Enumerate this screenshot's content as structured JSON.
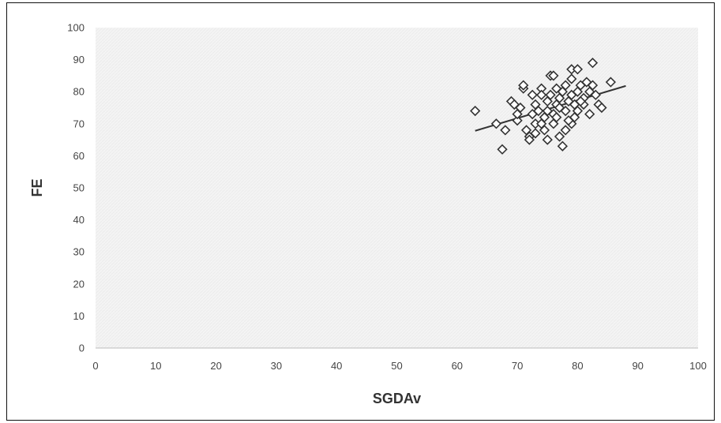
{
  "chart_data": {
    "type": "scatter",
    "title": "",
    "xlabel": "SGDAv",
    "ylabel": "FE",
    "xlim": [
      0,
      100
    ],
    "ylim": [
      0,
      100
    ],
    "x_ticks": [
      "0",
      "10",
      "20",
      "30",
      "40",
      "50",
      "60",
      "70",
      "80",
      "90",
      "100"
    ],
    "y_ticks": [
      "0",
      "10",
      "20",
      "30",
      "40",
      "50",
      "60",
      "70",
      "80",
      "90",
      "100"
    ],
    "grid": false,
    "legend": "none",
    "marker": "diamond-open",
    "colors": {
      "marker": "#333333",
      "trendline": "#333333",
      "plot_background": "#f3f3f3",
      "axis": "#bbbbbb"
    },
    "trendline": {
      "type": "linear",
      "x": [
        63,
        88
      ],
      "y": [
        67.8,
        81.8
      ]
    },
    "series": [
      {
        "points": [
          [
            63,
            74
          ],
          [
            66.5,
            70
          ],
          [
            67.5,
            62
          ],
          [
            68,
            68
          ],
          [
            69,
            77
          ],
          [
            69.5,
            76
          ],
          [
            70,
            71
          ],
          [
            70.5,
            75
          ],
          [
            71,
            81
          ],
          [
            71,
            82
          ],
          [
            71.5,
            68
          ],
          [
            72,
            66
          ],
          [
            72,
            65
          ],
          [
            72.5,
            73
          ],
          [
            73,
            76
          ],
          [
            73,
            70
          ],
          [
            73.5,
            74
          ],
          [
            74,
            81
          ],
          [
            74,
            79
          ],
          [
            74.5,
            72
          ],
          [
            74.5,
            68
          ],
          [
            75,
            65
          ],
          [
            75,
            77
          ],
          [
            75,
            74
          ],
          [
            75.5,
            85
          ],
          [
            75.5,
            79
          ],
          [
            76,
            70
          ],
          [
            76,
            73
          ],
          [
            76,
            85
          ],
          [
            76.5,
            76
          ],
          [
            76.5,
            72
          ],
          [
            77,
            66
          ],
          [
            77,
            75
          ],
          [
            77.5,
            63
          ],
          [
            77.5,
            80
          ],
          [
            78,
            68
          ],
          [
            78,
            74
          ],
          [
            78,
            82
          ],
          [
            78.5,
            77
          ],
          [
            79,
            87
          ],
          [
            79,
            84
          ],
          [
            79,
            79
          ],
          [
            79,
            70
          ],
          [
            79.5,
            76
          ],
          [
            79.5,
            72
          ],
          [
            80,
            87
          ],
          [
            80,
            80
          ],
          [
            80,
            74
          ],
          [
            80.5,
            82
          ],
          [
            81,
            78
          ],
          [
            81,
            76
          ],
          [
            81.5,
            83
          ],
          [
            82,
            80
          ],
          [
            82,
            73
          ],
          [
            82.5,
            89
          ],
          [
            82.5,
            82
          ],
          [
            83,
            79
          ],
          [
            83.5,
            76
          ],
          [
            84,
            75
          ],
          [
            85.5,
            83
          ],
          [
            70,
            73
          ],
          [
            72.5,
            79
          ],
          [
            74,
            70
          ],
          [
            76.5,
            81
          ],
          [
            78.5,
            71
          ],
          [
            80.5,
            77
          ],
          [
            73,
            67
          ],
          [
            77,
            78
          ]
        ]
      }
    ]
  }
}
